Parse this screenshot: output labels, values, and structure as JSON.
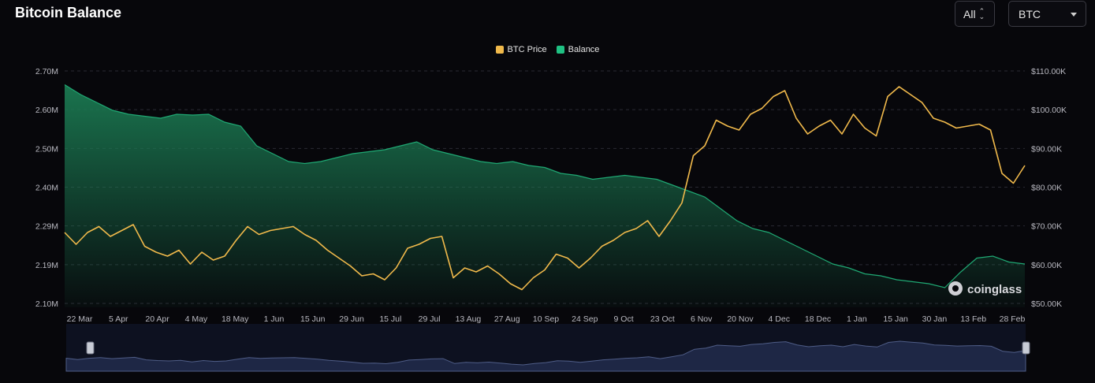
{
  "header": {
    "title": "Bitcoin Balance",
    "range_select": "All",
    "asset_select": "BTC"
  },
  "legend": [
    {
      "label": "BTC Price",
      "color": "#f0b94b"
    },
    {
      "label": "Balance",
      "color": "#1fc183"
    }
  ],
  "watermark": "coinglass",
  "colors": {
    "price_line": "#f0b94b",
    "balance_line": "#1fa873",
    "balance_fill_top": "#1b7a52",
    "grid": "#2a2a33",
    "navigator_fill": "#1e2745",
    "navigator_line": "#4f5d87"
  },
  "chart_data": {
    "type": "line",
    "title": "Bitcoin Balance",
    "x_ticks": [
      "22 Mar",
      "5 Apr",
      "20 Apr",
      "4 May",
      "18 May",
      "1 Jun",
      "15 Jun",
      "29 Jun",
      "15 Jul",
      "29 Jul",
      "13 Aug",
      "27 Aug",
      "10 Sep",
      "24 Sep",
      "9 Oct",
      "23 Oct",
      "6 Nov",
      "20 Nov",
      "4 Dec",
      "18 Dec",
      "1 Jan",
      "15 Jan",
      "30 Jan",
      "13 Feb",
      "28 Feb"
    ],
    "y_left_ticks": [
      "2.70M",
      "2.60M",
      "2.50M",
      "2.40M",
      "2.29M",
      "2.19M",
      "2.10M"
    ],
    "y_right_ticks": [
      "$110.00K",
      "$100.00K",
      "$90.00K",
      "$80.00K",
      "$70.00K",
      "$60.00K",
      "$50.00K"
    ],
    "y_left_range": [
      2100000,
      2700000
    ],
    "y_right_range": [
      50000,
      110000
    ],
    "grid": true,
    "legend_position": "top-center",
    "series": [
      {
        "name": "Balance",
        "axis": "left",
        "style": "area",
        "values": [
          2665000,
          2640000,
          2620000,
          2600000,
          2590000,
          2585000,
          2580000,
          2590000,
          2588000,
          2590000,
          2570000,
          2560000,
          2510000,
          2490000,
          2470000,
          2465000,
          2470000,
          2480000,
          2490000,
          2495000,
          2500000,
          2510000,
          2520000,
          2500000,
          2490000,
          2480000,
          2470000,
          2465000,
          2470000,
          2460000,
          2455000,
          2440000,
          2435000,
          2425000,
          2430000,
          2435000,
          2430000,
          2425000,
          2410000,
          2395000,
          2380000,
          2350000,
          2320000,
          2300000,
          2290000,
          2270000,
          2250000,
          2230000,
          2210000,
          2200000,
          2185000,
          2180000,
          2170000,
          2165000,
          2160000,
          2150000,
          2190000,
          2225000,
          2230000,
          2215000,
          2210000
        ]
      },
      {
        "name": "BTC Price",
        "axis": "right",
        "style": "line",
        "values": [
          69000,
          66000,
          69000,
          70500,
          68000,
          69500,
          71000,
          65500,
          64000,
          63000,
          64500,
          61000,
          64000,
          62000,
          63000,
          67000,
          70500,
          68500,
          69500,
          70000,
          70500,
          68500,
          67000,
          64500,
          62500,
          60500,
          58000,
          58500,
          57000,
          60000,
          65000,
          66000,
          67500,
          68000,
          57500,
          60000,
          59000,
          60500,
          58500,
          56000,
          54500,
          57500,
          59500,
          63500,
          62500,
          60000,
          62500,
          65500,
          67000,
          69000,
          70000,
          72000,
          68000,
          72000,
          76500,
          88500,
          91000,
          97500,
          96000,
          95000,
          99000,
          100500,
          103500,
          105000,
          98000,
          94000,
          96000,
          97500,
          94000,
          99000,
          95500,
          93500,
          103500,
          106000,
          104000,
          102000,
          98000,
          97000,
          95500,
          96000,
          96500,
          95000,
          84000,
          81500,
          86000
        ]
      }
    ]
  }
}
